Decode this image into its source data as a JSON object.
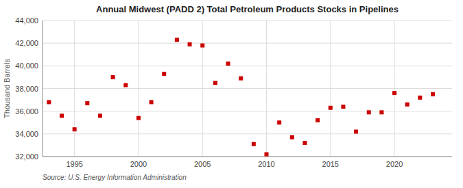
{
  "chart_data": {
    "type": "scatter",
    "title": "Annual Midwest (PADD 2) Total Petroleum Products Stocks in Pipelines",
    "ylabel": "Thousand Barrels",
    "annotations": [
      "Source: U.S. Energy Information Administration"
    ],
    "x": [
      1993,
      1994,
      1995,
      1996,
      1997,
      1998,
      1999,
      2000,
      2001,
      2002,
      2003,
      2004,
      2005,
      2006,
      2007,
      2008,
      2009,
      2010,
      2011,
      2012,
      2013,
      2014,
      2015,
      2016,
      2017,
      2018,
      2019,
      2020,
      2021,
      2022,
      2023
    ],
    "values": [
      36800,
      35600,
      34400,
      36700,
      35600,
      39000,
      38300,
      35400,
      36800,
      39300,
      42300,
      41900,
      41800,
      38500,
      40200,
      38900,
      33100,
      32200,
      35000,
      33700,
      33200,
      35200,
      36300,
      36400,
      34200,
      35900,
      35900,
      37600,
      36600,
      37200,
      37500
    ],
    "color": "#cc0000",
    "marker": "square",
    "xlim": [
      1992.5,
      2024.5
    ],
    "xticks": [
      1995,
      2000,
      2005,
      2010,
      2015,
      2020
    ],
    "ylim": [
      32000,
      44000
    ],
    "yticks": [
      {
        "value": 32000,
        "label": "32,000"
      },
      {
        "value": 34000,
        "label": "34,000"
      },
      {
        "value": 36000,
        "label": "36,000"
      },
      {
        "value": 38000,
        "label": "38,000"
      },
      {
        "value": 40000,
        "label": "40,000"
      },
      {
        "value": 42000,
        "label": "42,000"
      },
      {
        "value": 44000,
        "label": "44,000"
      }
    ],
    "grid": true
  }
}
